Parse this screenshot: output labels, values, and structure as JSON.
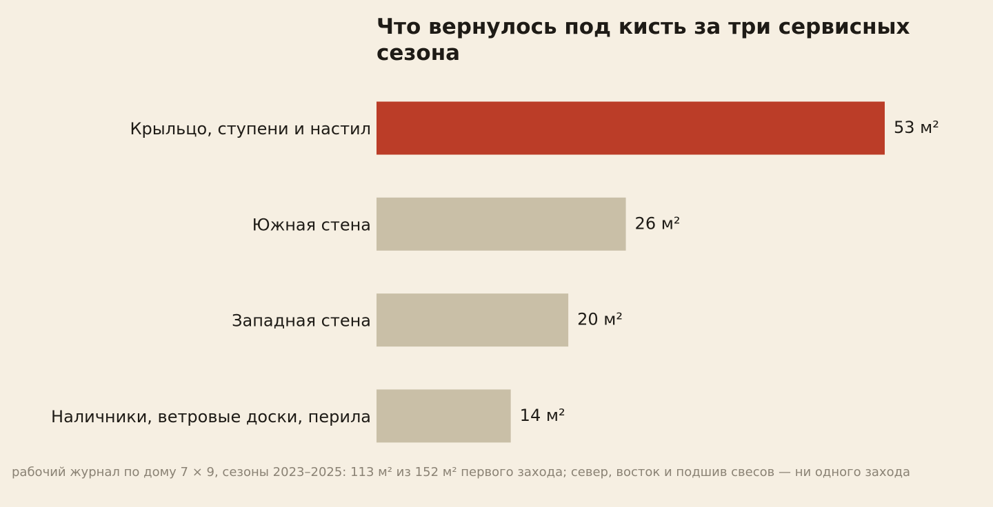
{
  "chart_data": {
    "type": "bar",
    "orientation": "horizontal",
    "title": "Что вернулось под кисть за три сервисных сезона",
    "categories": [
      "Крыльцо, ступени и настил",
      "Южная стена",
      "Западная стена",
      "Наличники, ветровые доски, перила"
    ],
    "values": [
      53,
      26,
      20,
      14
    ],
    "value_labels": [
      "53 м²",
      "26 м²",
      "20 м²",
      "14 м²"
    ],
    "unit": "м²",
    "highlight_index": 0,
    "colors": {
      "highlight": "#bb3d28",
      "default": "#c9bfa7",
      "background": "#f6efe2",
      "text": "#1e1b16",
      "note": "#8a8274"
    },
    "xlim": [
      0,
      53
    ],
    "grid": false,
    "note": "рабочий журнал по дому 7 × 9, сезоны 2023–2025: 113 м² из 152 м² первого захода; север, восток и подшив свесов — ни одного захода"
  }
}
